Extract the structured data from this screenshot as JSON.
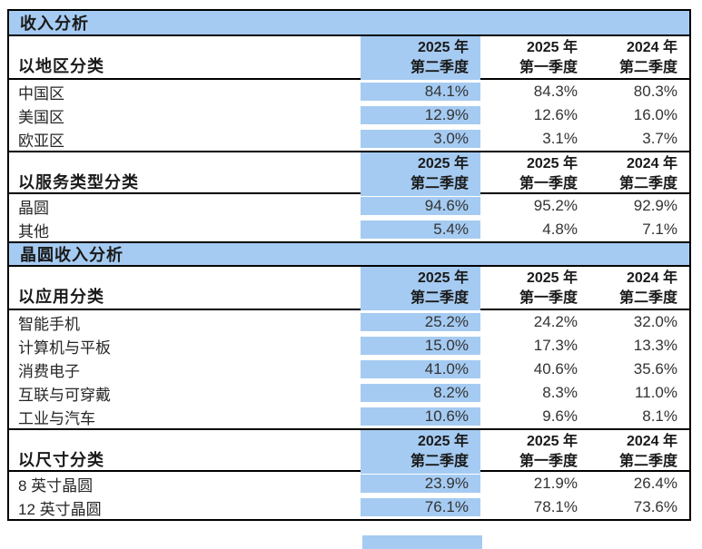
{
  "colors": {
    "highlight": "#A5CBF2",
    "border": "#000000",
    "background": "#FFFFFF"
  },
  "document": {
    "bands": {
      "revenue": "收入分析",
      "wafer_revenue": "晶圆收入分析"
    },
    "quarter_headers": [
      {
        "year": "2025 年",
        "quarter": "第二季度"
      },
      {
        "year": "2025 年",
        "quarter": "第一季度"
      },
      {
        "year": "2024 年",
        "quarter": "第二季度"
      }
    ],
    "groups": [
      {
        "title": "以地区分类",
        "rows": [
          {
            "label": "中国区",
            "values": [
              "84.1%",
              "84.3%",
              "80.3%"
            ]
          },
          {
            "label": "美国区",
            "values": [
              "12.9%",
              "12.6%",
              "16.0%"
            ]
          },
          {
            "label": "欧亚区",
            "values": [
              "3.0%",
              "3.1%",
              "3.7%"
            ]
          }
        ]
      },
      {
        "title": "以服务类型分类",
        "rows": [
          {
            "label": "晶圆",
            "values": [
              "94.6%",
              "95.2%",
              "92.9%"
            ]
          },
          {
            "label": "其他",
            "values": [
              "5.4%",
              "4.8%",
              "7.1%"
            ]
          }
        ]
      },
      {
        "title": "以应用分类",
        "rows": [
          {
            "label": "智能手机",
            "values": [
              "25.2%",
              "24.2%",
              "32.0%"
            ]
          },
          {
            "label": "计算机与平板",
            "values": [
              "15.0%",
              "17.3%",
              "13.3%"
            ]
          },
          {
            "label": "消费电子",
            "values": [
              "41.0%",
              "40.6%",
              "35.6%"
            ]
          },
          {
            "label": "互联与可穿戴",
            "values": [
              "8.2%",
              "8.3%",
              "11.0%"
            ]
          },
          {
            "label": "工业与汽车",
            "values": [
              "10.6%",
              "9.6%",
              "8.1%"
            ]
          }
        ]
      },
      {
        "title": "以尺寸分类",
        "rows": [
          {
            "label": "8 英寸晶圆",
            "values": [
              "23.9%",
              "21.9%",
              "26.4%"
            ]
          },
          {
            "label": "12 英寸晶圆",
            "values": [
              "76.1%",
              "78.1%",
              "73.6%"
            ]
          }
        ]
      }
    ]
  }
}
